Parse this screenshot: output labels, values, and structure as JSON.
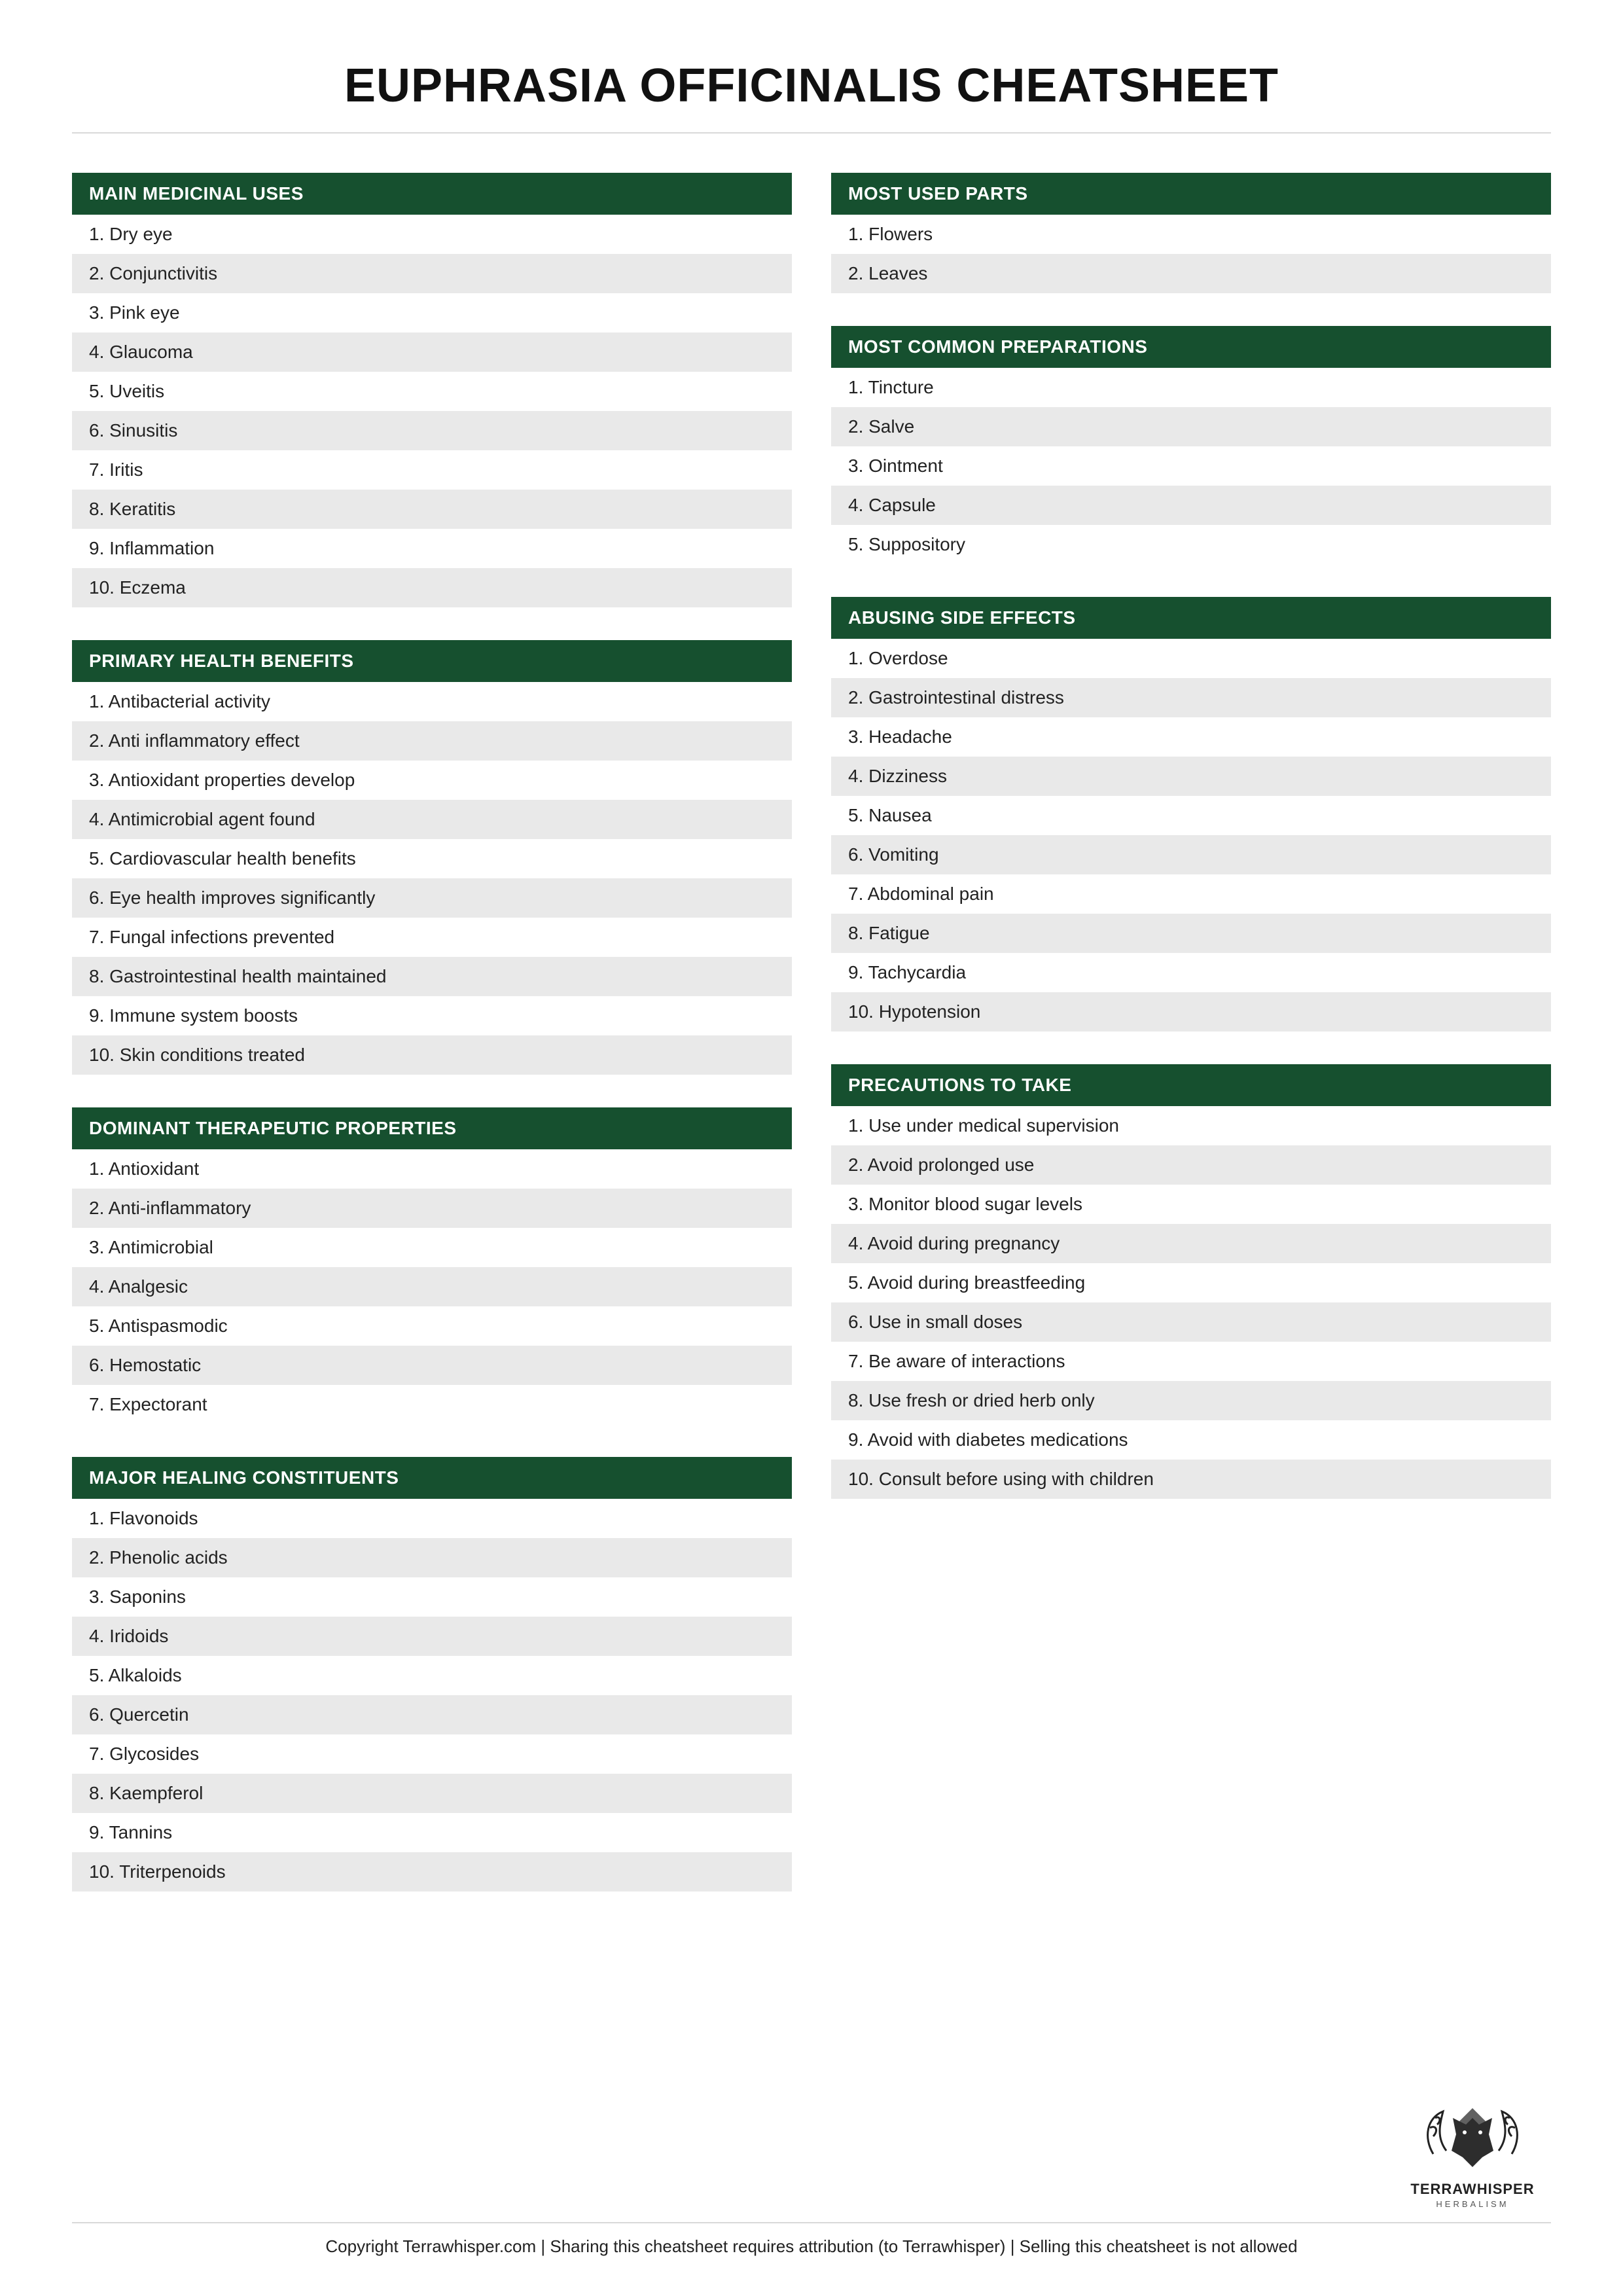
{
  "title": "EUPHRASIA OFFICINALIS CHEATSHEET",
  "colors": {
    "header_bg": "#16502f",
    "header_text": "#ffffff",
    "row_even_bg": "#e9e9e9",
    "row_odd_bg": "#ffffff",
    "text": "#222222",
    "divider": "#d9d9d9"
  },
  "left": [
    {
      "title": "MAIN MEDICINAL USES",
      "items": [
        "Dry eye",
        "Conjunctivitis",
        "Pink eye",
        "Glaucoma",
        "Uveitis",
        "Sinusitis",
        "Iritis",
        "Keratitis",
        "Inflammation",
        "Eczema"
      ]
    },
    {
      "title": "PRIMARY HEALTH BENEFITS",
      "items": [
        "Antibacterial activity",
        "Anti inflammatory effect",
        "Antioxidant properties develop",
        "Antimicrobial agent found",
        "Cardiovascular health benefits",
        "Eye health improves significantly",
        "Fungal infections prevented",
        "Gastrointestinal health maintained",
        "Immune system boosts",
        "Skin conditions treated"
      ]
    },
    {
      "title": "DOMINANT THERAPEUTIC PROPERTIES",
      "items": [
        "Antioxidant",
        "Anti-inflammatory",
        "Antimicrobial",
        "Analgesic",
        "Antispasmodic",
        "Hemostatic",
        "Expectorant"
      ]
    },
    {
      "title": "MAJOR HEALING CONSTITUENTS",
      "items": [
        "Flavonoids",
        "Phenolic acids",
        "Saponins",
        "Iridoids",
        "Alkaloids",
        "Quercetin",
        "Glycosides",
        "Kaempferol",
        "Tannins",
        "Triterpenoids"
      ]
    }
  ],
  "right": [
    {
      "title": "MOST USED PARTS",
      "items": [
        "Flowers",
        "Leaves"
      ]
    },
    {
      "title": "MOST COMMON PREPARATIONS",
      "items": [
        "Tincture",
        "Salve",
        "Ointment",
        "Capsule",
        "Suppository"
      ]
    },
    {
      "title": "ABUSING SIDE EFFECTS",
      "items": [
        "Overdose",
        "Gastrointestinal distress",
        "Headache",
        "Dizziness",
        "Nausea",
        "Vomiting",
        "Abdominal pain",
        "Fatigue",
        "Tachycardia",
        "Hypotension"
      ]
    },
    {
      "title": "PRECAUTIONS TO TAKE",
      "items": [
        "Use under medical supervision",
        "Avoid prolonged use",
        "Monitor blood sugar levels",
        "Avoid during pregnancy",
        "Avoid during breastfeeding",
        "Use in small doses",
        "Be aware of interactions",
        "Use fresh or dried herb only",
        "Avoid with diabetes medications",
        "Consult before using with children"
      ]
    }
  ],
  "brand": {
    "name": "TERRAWHISPER",
    "tagline": "HERBALISM"
  },
  "footer": "Copyright Terrawhisper.com | Sharing this cheatsheet requires attribution (to Terrawhisper) | Selling this cheatsheet is not allowed"
}
